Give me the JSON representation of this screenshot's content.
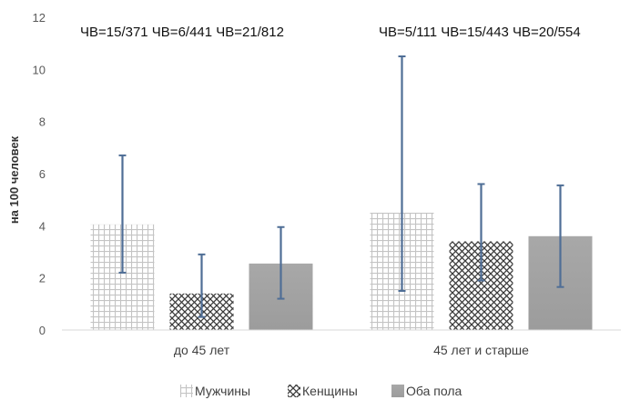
{
  "chart_data": {
    "type": "bar",
    "title": "",
    "xlabel": "",
    "ylabel": "на 100 человек",
    "ylim": [
      0,
      12
    ],
    "yticks": [
      0,
      2,
      4,
      6,
      8,
      10,
      12
    ],
    "categories": [
      "до 45 лет",
      "45 лет и старше"
    ],
    "series": [
      {
        "name": "Мужчины",
        "pattern": "grid",
        "color": "#c9c9c9",
        "values": [
          4.05,
          4.5
        ],
        "err_low": [
          2.2,
          1.5
        ],
        "err_high": [
          6.7,
          10.5
        ]
      },
      {
        "name": "Кенщины",
        "pattern": "diamond",
        "color": "#3a3a3a",
        "values": [
          1.4,
          3.4
        ],
        "err_low": [
          0.5,
          1.9
        ],
        "err_high": [
          2.9,
          5.6
        ]
      },
      {
        "name": "Оба пола",
        "pattern": "solid",
        "color": "#a6a6a6",
        "values": [
          2.55,
          3.6
        ],
        "err_low": [
          1.2,
          1.65
        ],
        "err_high": [
          3.95,
          5.55
        ]
      }
    ],
    "annotations": [
      "ЧВ=15/371 ЧВ=6/441 ЧВ=21/812",
      "ЧВ=5/111 ЧВ=15/443 ЧВ=20/554"
    ],
    "error_bar_color": "#4f6e96",
    "grid": false,
    "legend_position": "bottom"
  }
}
